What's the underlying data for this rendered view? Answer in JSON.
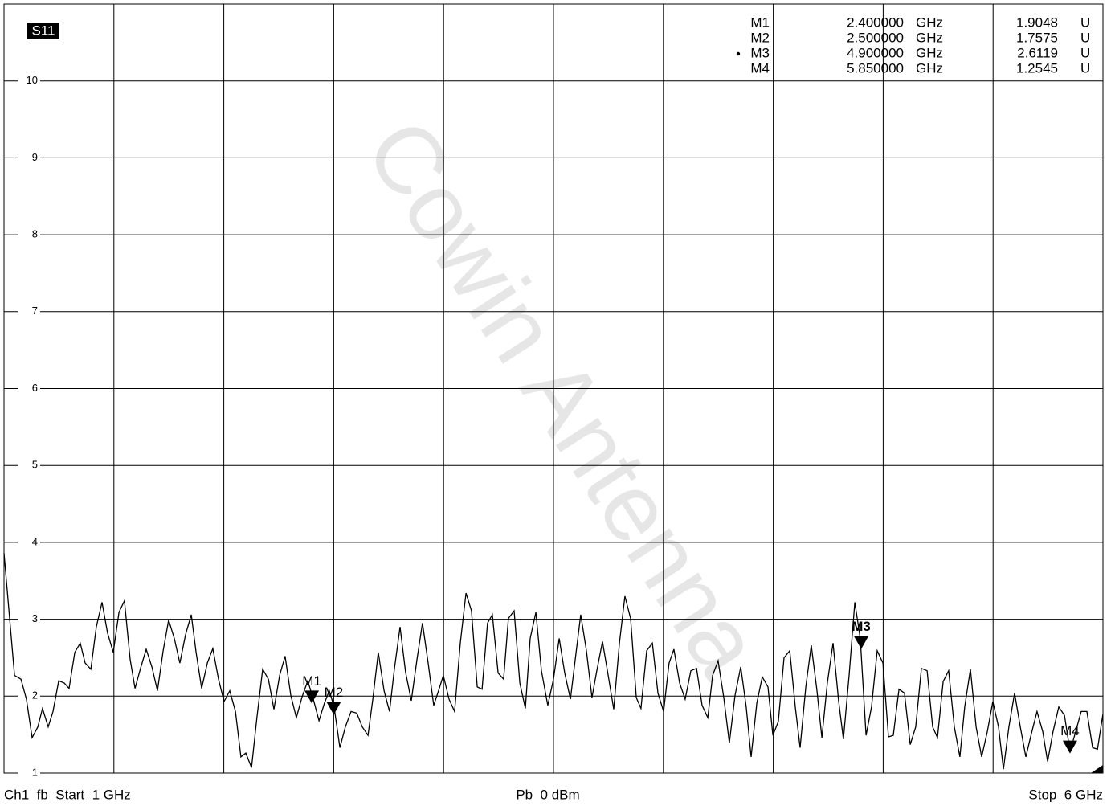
{
  "chart_data": {
    "type": "line",
    "title": "S11",
    "watermark": "Cowin Antenna",
    "footer_left": "Ch1  fb  Start  1 GHz",
    "footer_center": "Pb  0 dBm",
    "footer_right": "Stop  6 GHz",
    "xlim": [
      1,
      6
    ],
    "xticks": [
      1,
      1.5,
      2,
      2.5,
      3,
      3.5,
      4,
      4.5,
      5,
      5.5,
      6
    ],
    "ylim": [
      1,
      11
    ],
    "yticks": [
      1,
      2,
      3,
      4,
      5,
      6,
      7,
      8,
      9,
      10
    ],
    "grid": true,
    "series": [
      {
        "name": "S11",
        "color": "#000000",
        "x": [
          1.0,
          1.048,
          1.077,
          1.102,
          1.128,
          1.154,
          1.175,
          1.201,
          1.223,
          1.249,
          1.274,
          1.296,
          1.322,
          1.347,
          1.369,
          1.395,
          1.42,
          1.446,
          1.471,
          1.497,
          1.523,
          1.548,
          1.574,
          1.596,
          1.621,
          1.647,
          1.673,
          1.698,
          1.724,
          1.749,
          1.775,
          1.8,
          1.826,
          1.852,
          1.874,
          1.899,
          1.925,
          1.95,
          1.976,
          2.001,
          2.027,
          2.053,
          2.078,
          2.1,
          2.126,
          2.151,
          2.177,
          2.203,
          2.228,
          2.254,
          2.279,
          2.305,
          2.33,
          2.356,
          2.382,
          2.407,
          2.433,
          2.458,
          2.48,
          2.502,
          2.528,
          2.553,
          2.579,
          2.605,
          2.63,
          2.656,
          2.678,
          2.703,
          2.729,
          2.754,
          2.776,
          2.802,
          2.827,
          2.853,
          2.879,
          2.904,
          2.93,
          2.955,
          2.977,
          2.999,
          3.025,
          3.05,
          3.076,
          3.102,
          3.127,
          3.153,
          3.175,
          3.2,
          3.222,
          3.248,
          3.273,
          3.295,
          3.321,
          3.347,
          3.372,
          3.394,
          3.42,
          3.445,
          3.474,
          3.5,
          3.526,
          3.551,
          3.577,
          3.599,
          3.624,
          3.65,
          3.675,
          3.697,
          3.723,
          3.749,
          3.774,
          3.8,
          3.825,
          3.851,
          3.877,
          3.898,
          3.924,
          3.95,
          3.975,
          4.001,
          4.026,
          4.048,
          4.074,
          4.099,
          4.125,
          4.151,
          4.176,
          4.202,
          4.224,
          4.249,
          4.275,
          4.3,
          4.326,
          4.352,
          4.377,
          4.399,
          4.425,
          4.45,
          4.476,
          4.498,
          4.523,
          4.549,
          4.575,
          4.6,
          4.622,
          4.648,
          4.673,
          4.699,
          4.721,
          4.746,
          4.772,
          4.797,
          4.819,
          4.845,
          4.871,
          4.896,
          4.922,
          4.947,
          4.973,
          4.999,
          5.024,
          5.046,
          5.072,
          5.097,
          5.123,
          5.148,
          5.174,
          5.2,
          5.225,
          5.247,
          5.273,
          5.298,
          5.324,
          5.349,
          5.371,
          5.397,
          5.423,
          5.448,
          5.474,
          5.499,
          5.525,
          5.547,
          5.572,
          5.598,
          5.624,
          5.649,
          5.675,
          5.7,
          5.726,
          5.748,
          5.773,
          5.799,
          5.825,
          5.85,
          5.876,
          5.901,
          5.927,
          5.953,
          5.975,
          6.0
        ],
        "values": [
          3.86,
          2.27,
          2.22,
          1.96,
          1.46,
          1.6,
          1.84,
          1.6,
          1.8,
          2.2,
          2.17,
          2.1,
          2.57,
          2.69,
          2.43,
          2.35,
          2.9,
          3.22,
          2.82,
          2.57,
          3.09,
          3.24,
          2.48,
          2.1,
          2.36,
          2.61,
          2.38,
          2.07,
          2.59,
          2.99,
          2.75,
          2.43,
          2.8,
          3.06,
          2.57,
          2.1,
          2.43,
          2.62,
          2.22,
          1.93,
          2.07,
          1.8,
          1.21,
          1.26,
          1.07,
          1.73,
          2.35,
          2.22,
          1.83,
          2.27,
          2.52,
          2.01,
          1.72,
          1.99,
          2.2,
          1.96,
          1.68,
          1.91,
          2.07,
          1.86,
          1.33,
          1.6,
          1.8,
          1.78,
          1.6,
          1.49,
          1.96,
          2.57,
          2.07,
          1.8,
          2.35,
          2.9,
          2.31,
          1.94,
          2.48,
          2.95,
          2.43,
          1.88,
          2.07,
          2.27,
          1.96,
          1.8,
          2.69,
          3.34,
          3.11,
          2.12,
          2.09,
          2.95,
          3.06,
          2.3,
          2.22,
          3.01,
          3.11,
          2.17,
          1.84,
          2.75,
          3.09,
          2.33,
          1.88,
          2.22,
          2.75,
          2.3,
          1.96,
          2.48,
          3.06,
          2.59,
          1.98,
          2.33,
          2.71,
          2.27,
          1.83,
          2.69,
          3.3,
          3.01,
          1.98,
          1.84,
          2.59,
          2.69,
          2.04,
          1.8,
          2.43,
          2.61,
          2.17,
          1.96,
          2.33,
          2.36,
          1.88,
          1.72,
          2.27,
          2.46,
          1.98,
          1.39,
          2.01,
          2.38,
          1.86,
          1.21,
          1.91,
          2.25,
          2.12,
          1.49,
          1.67,
          2.5,
          2.59,
          1.86,
          1.33,
          2.12,
          2.66,
          2.07,
          1.46,
          2.17,
          2.69,
          1.94,
          1.44,
          2.27,
          3.22,
          2.75,
          1.49,
          1.86,
          2.59,
          2.43,
          1.47,
          1.49,
          2.09,
          2.04,
          1.37,
          1.6,
          2.36,
          2.33,
          1.6,
          1.46,
          2.19,
          2.33,
          1.6,
          1.21,
          1.86,
          2.35,
          1.6,
          1.21,
          1.54,
          1.93,
          1.6,
          1.05,
          1.6,
          2.04,
          1.6,
          1.21,
          1.52,
          1.8,
          1.54,
          1.15,
          1.54,
          1.86,
          1.75,
          1.28,
          1.54,
          1.8,
          1.8,
          1.33,
          1.31,
          1.77
        ]
      }
    ],
    "markers": [
      {
        "name": "M1",
        "x": 2.4,
        "x_label": "2.400000",
        "x_unit": "GHz",
        "y": 1.9048,
        "y_unit": "U",
        "active": false
      },
      {
        "name": "M2",
        "x": 2.5,
        "x_label": "2.500000",
        "x_unit": "GHz",
        "y": 1.7575,
        "y_unit": "U",
        "active": false
      },
      {
        "name": "M3",
        "x": 4.9,
        "x_label": "4.900000",
        "x_unit": "GHz",
        "y": 2.6119,
        "y_unit": "U",
        "active": true
      },
      {
        "name": "M4",
        "x": 5.85,
        "x_label": "5.850000",
        "x_unit": "GHz",
        "y": 1.2545,
        "y_unit": "U",
        "active": false
      }
    ]
  }
}
